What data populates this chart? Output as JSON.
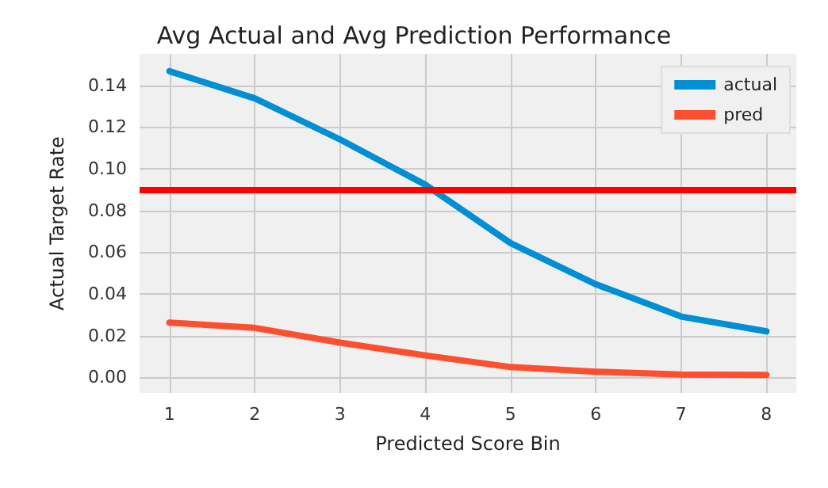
{
  "chart_data": {
    "type": "line",
    "title": "Avg Actual and Avg Prediction Performance",
    "xlabel": "Predicted Score Bin",
    "ylabel": "Actual Target Rate",
    "x": [
      1,
      2,
      3,
      4,
      5,
      6,
      7,
      8
    ],
    "series": [
      {
        "name": "actual",
        "color": "#008fd5",
        "values": [
          0.1467,
          0.1337,
          0.114,
          0.0923,
          0.0643,
          0.0446,
          0.0291,
          0.022
        ]
      },
      {
        "name": "pred",
        "color": "#fc4f30",
        "values": [
          0.0262,
          0.0237,
          0.0166,
          0.0105,
          0.0049,
          0.0027,
          0.0013,
          0.0011
        ]
      }
    ],
    "xlim": [
      0.65,
      8.35
    ],
    "xticks": [
      1,
      2,
      3,
      4,
      5,
      6,
      7,
      8
    ],
    "ylim": [
      -0.0075,
      0.155
    ],
    "yticks": [
      {
        "value": 0,
        "label": "0.00"
      },
      0.02,
      0.04,
      0.06,
      0.08,
      {
        "value": 0.1,
        "label": "0.10"
      },
      0.12,
      0.14
    ],
    "ref_lines": [
      {
        "axis": "y",
        "value": 0.0896,
        "color": "#ff0000"
      }
    ],
    "grid": true,
    "legend": "top right",
    "marker": "none",
    "line_style": "solid"
  }
}
